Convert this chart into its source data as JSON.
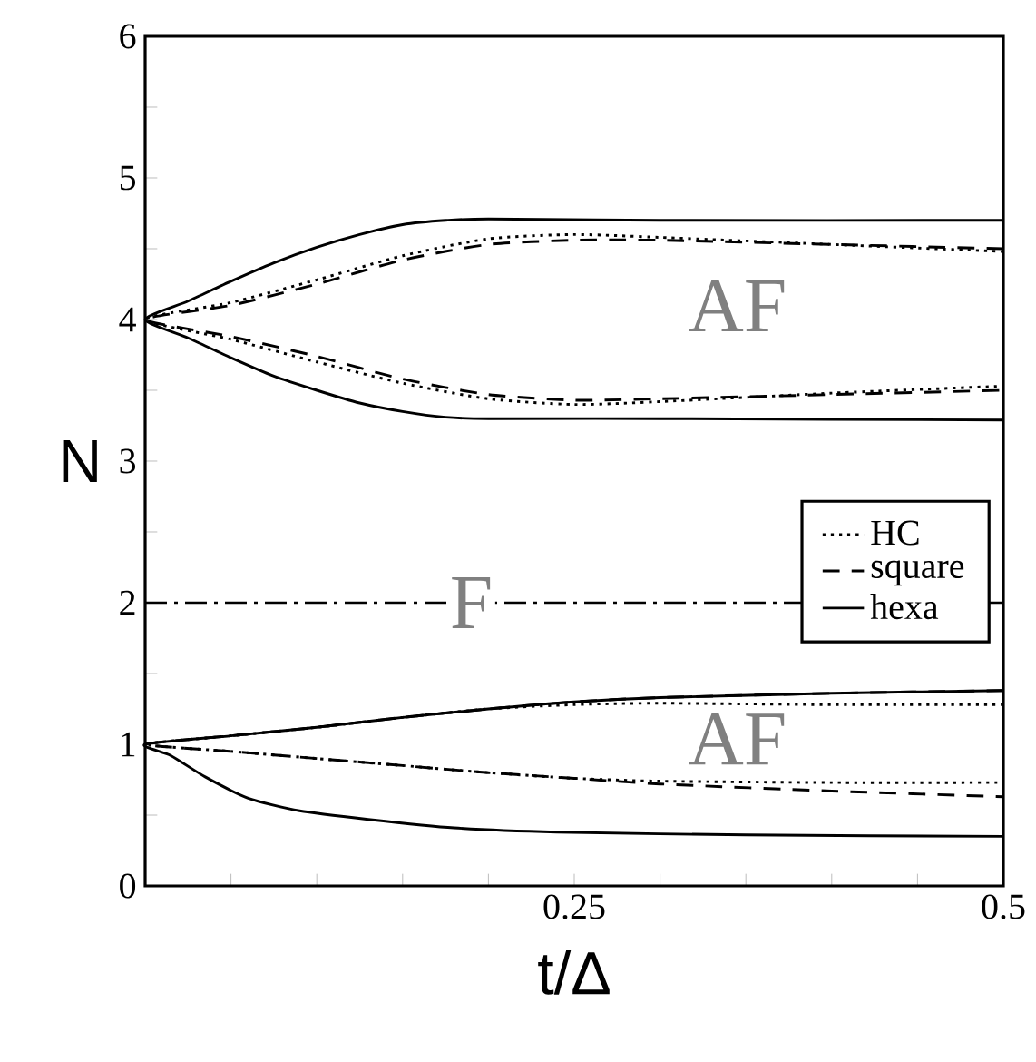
{
  "chart_data": {
    "type": "line",
    "xlabel": "t/Δ",
    "ylabel": "N",
    "xlim": [
      0,
      0.5
    ],
    "ylim": [
      0,
      6
    ],
    "xticks": [
      {
        "value": 0.05,
        "label": null
      },
      {
        "value": 0.1,
        "label": null
      },
      {
        "value": 0.15,
        "label": null
      },
      {
        "value": 0.2,
        "label": null
      },
      0.25,
      {
        "value": 0.3,
        "label": null
      },
      {
        "value": 0.35,
        "label": null
      },
      {
        "value": 0.4,
        "label": null
      },
      {
        "value": 0.45,
        "label": null
      },
      0.5
    ],
    "yticks": [
      0,
      {
        "value": 0.5,
        "label": null
      },
      1,
      {
        "value": 1.5,
        "label": null
      },
      2,
      {
        "value": 2.5,
        "label": null
      },
      3,
      {
        "value": 3.5,
        "label": null
      },
      4,
      {
        "value": 4.5,
        "label": null
      },
      5,
      {
        "value": 5.5,
        "label": null
      },
      6
    ],
    "grid": false,
    "legend": "right",
    "marker": "none",
    "series": [
      {
        "name": "HC",
        "color": "#000000",
        "line_style": "dotted",
        "x": [
          0.5,
          0.4,
          0.3,
          0.25,
          0.2,
          0.15,
          0.1,
          0.05,
          0,
          0.05,
          0.1,
          0.15,
          0.2,
          0.25,
          0.3,
          0.4,
          0.5
        ],
        "values": [
          4.48,
          4.53,
          4.58,
          4.6,
          4.57,
          4.45,
          4.28,
          4.12,
          4,
          3.86,
          3.7,
          3.55,
          3.44,
          3.4,
          3.42,
          3.48,
          3.53
        ]
      },
      {
        "name": "square",
        "color": "#000000",
        "line_style": "dashed",
        "x": [
          0.5,
          0.4,
          0.3,
          0.25,
          0.2,
          0.15,
          0.1,
          0.05,
          0,
          0.05,
          0.1,
          0.15,
          0.2,
          0.25,
          0.3,
          0.4,
          0.5
        ],
        "values": [
          4.5,
          4.53,
          4.56,
          4.56,
          4.53,
          4.42,
          4.25,
          4.1,
          4,
          3.88,
          3.74,
          3.58,
          3.47,
          3.43,
          3.44,
          3.47,
          3.5
        ]
      },
      {
        "name": "hexa",
        "color": "#000000",
        "line_style": "solid",
        "x": [
          0.5,
          0.3,
          0.2,
          0.175,
          0.15,
          0.125,
          0.1,
          0.075,
          0.05,
          0.025,
          0,
          0.025,
          0.05,
          0.075,
          0.1,
          0.125,
          0.15,
          0.175,
          0.2,
          0.3,
          0.5
        ],
        "values": [
          4.7,
          4.7,
          4.71,
          4.7,
          4.67,
          4.6,
          4.51,
          4.4,
          4.27,
          4.13,
          4,
          3.87,
          3.73,
          3.6,
          3.5,
          3.41,
          3.35,
          3.31,
          3.3,
          3.3,
          3.29
        ]
      },
      {
        "color": "#000000",
        "line_style": "dotted",
        "x": [
          0.5,
          0.4,
          0.3,
          0.25,
          0.2,
          0.15,
          0.1,
          0.05,
          0,
          0.05,
          0.1,
          0.15,
          0.2,
          0.25,
          0.3,
          0.4,
          0.5
        ],
        "values": [
          1.28,
          1.28,
          1.29,
          1.28,
          1.25,
          1.19,
          1.12,
          1.06,
          1,
          0.95,
          0.9,
          0.85,
          0.8,
          0.76,
          0.74,
          0.73,
          0.73
        ]
      },
      {
        "color": "#000000",
        "line_style": "dashed",
        "x": [
          0.5,
          0.4,
          0.3,
          0.25,
          0.2,
          0.15,
          0.1,
          0.05,
          0,
          0.05,
          0.1,
          0.15,
          0.2,
          0.25,
          0.3,
          0.4,
          0.5
        ],
        "values": [
          1.38,
          1.36,
          1.33,
          1.3,
          1.25,
          1.19,
          1.12,
          1.06,
          1,
          0.95,
          0.9,
          0.85,
          0.8,
          0.76,
          0.72,
          0.67,
          0.63
        ]
      },
      {
        "color": "#000000",
        "line_style": "solid",
        "x": [
          0.5,
          0.4,
          0.3,
          0.25,
          0.2,
          0.15,
          0.1,
          0.05,
          0,
          0.015,
          0.035,
          0.06,
          0.09,
          0.13,
          0.18,
          0.24,
          0.35,
          0.5
        ],
        "values": [
          1.38,
          1.36,
          1.33,
          1.3,
          1.25,
          1.19,
          1.12,
          1.06,
          1,
          0.92,
          0.77,
          0.62,
          0.53,
          0.47,
          0.41,
          0.38,
          0.36,
          0.35
        ]
      }
    ],
    "ref_lines": [
      {
        "axis": "y",
        "value": 2,
        "label": "F",
        "color": "#000000",
        "line_style": "dashdot"
      }
    ],
    "annotations": [
      "AF",
      "AF"
    ]
  }
}
